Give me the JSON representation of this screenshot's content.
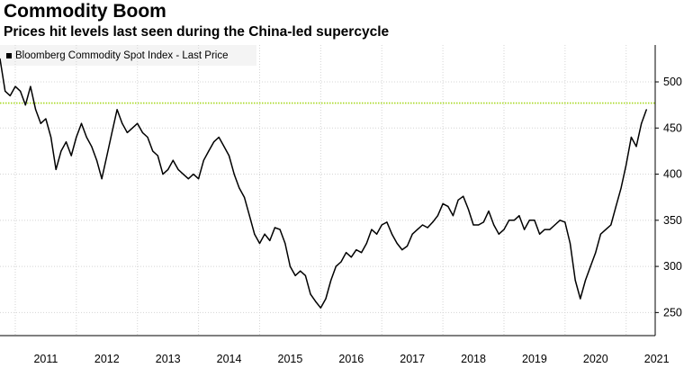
{
  "header": {
    "title": "Commodity Boom",
    "subtitle": "Prices hit levels last seen during the China-led supercycle"
  },
  "colors": {
    "series": "#000000",
    "reference_line": "#a6d81e",
    "grid": "#d4d4d4",
    "legend_bg": "#f4f4f4"
  },
  "chart_data": {
    "type": "line",
    "title": "Commodity Boom",
    "subtitle": "Prices hit levels last seen during the China-led supercycle",
    "legend": [
      "Bloomberg Commodity Spot Index - Last Price"
    ],
    "legend_position": "top-left",
    "y_axis_side": "right",
    "grid": true,
    "ylim": [
      225,
      540
    ],
    "yticks": [
      250,
      300,
      350,
      400,
      450,
      500
    ],
    "xticks": [
      "2011",
      "2012",
      "2013",
      "2014",
      "2015",
      "2016",
      "2017",
      "2018",
      "2019",
      "2020",
      "2021"
    ],
    "xlim": [
      "2010-10",
      "2021-06"
    ],
    "reference_line": {
      "y": 477,
      "style": "dotted",
      "color": "#a6d81e"
    },
    "series": [
      {
        "name": "Bloomberg Commodity Spot Index - Last Price",
        "points": [
          [
            "2010-10",
            525
          ],
          [
            "2010-11",
            490
          ],
          [
            "2010-12",
            485
          ],
          [
            "2011-01",
            495
          ],
          [
            "2011-02",
            490
          ],
          [
            "2011-03",
            475
          ],
          [
            "2011-04",
            495
          ],
          [
            "2011-05",
            470
          ],
          [
            "2011-06",
            455
          ],
          [
            "2011-07",
            460
          ],
          [
            "2011-08",
            440
          ],
          [
            "2011-09",
            405
          ],
          [
            "2011-10",
            425
          ],
          [
            "2011-11",
            435
          ],
          [
            "2011-12",
            420
          ],
          [
            "2012-01",
            440
          ],
          [
            "2012-02",
            455
          ],
          [
            "2012-03",
            440
          ],
          [
            "2012-04",
            430
          ],
          [
            "2012-05",
            415
          ],
          [
            "2012-06",
            395
          ],
          [
            "2012-07",
            420
          ],
          [
            "2012-08",
            445
          ],
          [
            "2012-09",
            470
          ],
          [
            "2012-10",
            455
          ],
          [
            "2012-11",
            445
          ],
          [
            "2012-12",
            450
          ],
          [
            "2013-01",
            455
          ],
          [
            "2013-02",
            445
          ],
          [
            "2013-03",
            440
          ],
          [
            "2013-04",
            425
          ],
          [
            "2013-05",
            420
          ],
          [
            "2013-06",
            400
          ],
          [
            "2013-07",
            405
          ],
          [
            "2013-08",
            415
          ],
          [
            "2013-09",
            405
          ],
          [
            "2013-10",
            400
          ],
          [
            "2013-11",
            395
          ],
          [
            "2013-12",
            400
          ],
          [
            "2014-01",
            395
          ],
          [
            "2014-02",
            415
          ],
          [
            "2014-03",
            425
          ],
          [
            "2014-04",
            435
          ],
          [
            "2014-05",
            440
          ],
          [
            "2014-06",
            430
          ],
          [
            "2014-07",
            420
          ],
          [
            "2014-08",
            400
          ],
          [
            "2014-09",
            385
          ],
          [
            "2014-10",
            375
          ],
          [
            "2014-11",
            355
          ],
          [
            "2014-12",
            335
          ],
          [
            "2015-01",
            325
          ],
          [
            "2015-02",
            335
          ],
          [
            "2015-03",
            328
          ],
          [
            "2015-04",
            342
          ],
          [
            "2015-05",
            340
          ],
          [
            "2015-06",
            325
          ],
          [
            "2015-07",
            300
          ],
          [
            "2015-08",
            290
          ],
          [
            "2015-09",
            295
          ],
          [
            "2015-10",
            290
          ],
          [
            "2015-11",
            270
          ],
          [
            "2015-12",
            262
          ],
          [
            "2016-01",
            255
          ],
          [
            "2016-02",
            265
          ],
          [
            "2016-03",
            285
          ],
          [
            "2016-04",
            300
          ],
          [
            "2016-05",
            305
          ],
          [
            "2016-06",
            315
          ],
          [
            "2016-07",
            310
          ],
          [
            "2016-08",
            318
          ],
          [
            "2016-09",
            315
          ],
          [
            "2016-10",
            325
          ],
          [
            "2016-11",
            340
          ],
          [
            "2016-12",
            335
          ],
          [
            "2017-01",
            345
          ],
          [
            "2017-02",
            348
          ],
          [
            "2017-03",
            335
          ],
          [
            "2017-04",
            325
          ],
          [
            "2017-05",
            318
          ],
          [
            "2017-06",
            322
          ],
          [
            "2017-07",
            335
          ],
          [
            "2017-08",
            340
          ],
          [
            "2017-09",
            345
          ],
          [
            "2017-10",
            342
          ],
          [
            "2017-11",
            348
          ],
          [
            "2017-12",
            355
          ],
          [
            "2018-01",
            368
          ],
          [
            "2018-02",
            365
          ],
          [
            "2018-03",
            355
          ],
          [
            "2018-04",
            372
          ],
          [
            "2018-05",
            376
          ],
          [
            "2018-06",
            362
          ],
          [
            "2018-07",
            345
          ],
          [
            "2018-08",
            345
          ],
          [
            "2018-09",
            348
          ],
          [
            "2018-10",
            360
          ],
          [
            "2018-11",
            345
          ],
          [
            "2018-12",
            335
          ],
          [
            "2019-01",
            340
          ],
          [
            "2019-02",
            350
          ],
          [
            "2019-03",
            350
          ],
          [
            "2019-04",
            355
          ],
          [
            "2019-05",
            340
          ],
          [
            "2019-06",
            350
          ],
          [
            "2019-07",
            350
          ],
          [
            "2019-08",
            335
          ],
          [
            "2019-09",
            340
          ],
          [
            "2019-10",
            340
          ],
          [
            "2019-11",
            345
          ],
          [
            "2019-12",
            350
          ],
          [
            "2020-01",
            348
          ],
          [
            "2020-02",
            325
          ],
          [
            "2020-03",
            285
          ],
          [
            "2020-04",
            265
          ],
          [
            "2020-05",
            285
          ],
          [
            "2020-06",
            300
          ],
          [
            "2020-07",
            315
          ],
          [
            "2020-08",
            335
          ],
          [
            "2020-09",
            340
          ],
          [
            "2020-10",
            345
          ],
          [
            "2020-11",
            365
          ],
          [
            "2020-12",
            385
          ],
          [
            "2021-01",
            410
          ],
          [
            "2021-02",
            440
          ],
          [
            "2021-03",
            430
          ],
          [
            "2021-04",
            455
          ],
          [
            "2021-05",
            470
          ]
        ]
      }
    ]
  }
}
